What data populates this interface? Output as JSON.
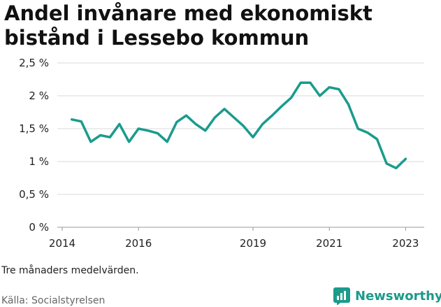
{
  "chart_data": {
    "type": "line",
    "title": "Andel invånare med ekonomiskt bistånd i Lessebo kommun",
    "xlabel": "",
    "ylabel": "",
    "x_ticks": [
      "2014",
      "2016",
      "2019",
      "2021",
      "2023"
    ],
    "y_ticks": [
      "0 %",
      "0,5 %",
      "1 %",
      "1,5 %",
      "2 %",
      "2,5 %"
    ],
    "ylim": [
      0,
      2.5
    ],
    "grid": "horizontal",
    "color": "#1a9b8c",
    "series": [
      {
        "x": [
          "2014-04",
          "2014-07",
          "2014-10",
          "2015-01",
          "2015-04",
          "2015-07",
          "2015-10",
          "2016-01",
          "2016-04",
          "2016-07",
          "2016-10",
          "2017-01",
          "2017-04",
          "2017-07",
          "2017-10",
          "2018-01",
          "2018-04",
          "2018-07",
          "2018-10",
          "2019-01",
          "2019-04",
          "2019-07",
          "2019-10",
          "2020-01",
          "2020-04",
          "2020-07",
          "2020-10",
          "2021-01",
          "2021-04",
          "2021-07",
          "2021-10",
          "2022-01",
          "2022-04",
          "2022-07",
          "2022-10",
          "2023-01"
        ],
        "values": [
          1.64,
          1.61,
          1.3,
          1.4,
          1.37,
          1.57,
          1.3,
          1.5,
          1.47,
          1.43,
          1.3,
          1.6,
          1.7,
          1.57,
          1.47,
          1.67,
          1.8,
          1.67,
          1.54,
          1.37,
          1.57,
          1.7,
          1.84,
          1.97,
          2.2,
          2.2,
          2.0,
          2.13,
          2.1,
          1.87,
          1.5,
          1.44,
          1.34,
          0.97,
          0.9,
          1.04
        ]
      }
    ]
  },
  "note": "Tre månaders medelvärden.",
  "source": "Källa: Socialstyrelsen",
  "brand": {
    "name": "Newsworthy",
    "icon": "newsworthy-logo-icon",
    "color": "#1a9b8c"
  }
}
